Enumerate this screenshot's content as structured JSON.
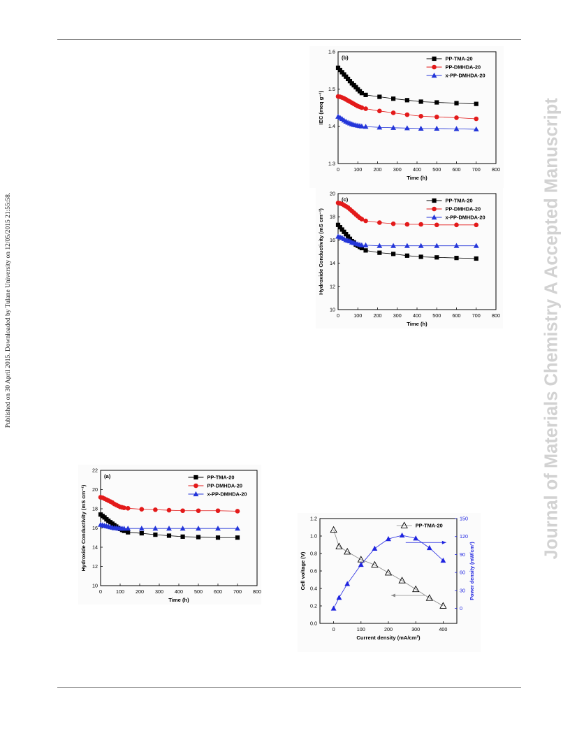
{
  "margin_left_text": "Published on 30 April 2015. Downloaded by Tulane University on 12/05/2015 21:55:58.",
  "margin_right_text": "Journal of Materials Chemistry A Accepted Manuscript",
  "chart_data": [
    {
      "id": "b",
      "type": "line",
      "panel_label": "(b)",
      "xlabel": "Time (h)",
      "ylabel": "IEC (meq g⁻¹)",
      "xlim": [
        0,
        800
      ],
      "ylim": [
        1.3,
        1.6
      ],
      "xticks": [
        "0",
        "100",
        "200",
        "300",
        "400",
        "500",
        "600",
        "700",
        "800"
      ],
      "yticks": [
        "1.3",
        "1.4",
        "1.5",
        "1.6"
      ],
      "legend_position": "top-right",
      "series": [
        {
          "name": "PP-TMA-20",
          "color": "#000000",
          "marker": "square",
          "x": [
            0,
            10,
            20,
            30,
            40,
            50,
            60,
            70,
            80,
            90,
            100,
            110,
            120,
            140,
            210,
            280,
            350,
            420,
            500,
            600,
            700
          ],
          "y": [
            1.557,
            1.551,
            1.545,
            1.539,
            1.533,
            1.527,
            1.521,
            1.515,
            1.51,
            1.505,
            1.499,
            1.494,
            1.489,
            1.484,
            1.479,
            1.474,
            1.47,
            1.466,
            1.464,
            1.462,
            1.46
          ]
        },
        {
          "name": "PP-DMHDA-20",
          "color": "#e31a1a",
          "marker": "circle",
          "x": [
            0,
            10,
            20,
            30,
            40,
            50,
            60,
            70,
            80,
            90,
            100,
            110,
            120,
            140,
            210,
            280,
            350,
            420,
            500,
            600,
            700
          ],
          "y": [
            1.48,
            1.479,
            1.477,
            1.475,
            1.472,
            1.469,
            1.466,
            1.463,
            1.46,
            1.457,
            1.454,
            1.452,
            1.45,
            1.447,
            1.441,
            1.436,
            1.431,
            1.427,
            1.425,
            1.423,
            1.42
          ]
        },
        {
          "name": "x-PP-DMHDA-20",
          "color": "#2436d9",
          "marker": "triangle",
          "x": [
            0,
            10,
            20,
            30,
            40,
            50,
            60,
            70,
            80,
            90,
            100,
            110,
            120,
            140,
            210,
            280,
            350,
            420,
            500,
            600,
            700
          ],
          "y": [
            1.426,
            1.423,
            1.42,
            1.416,
            1.413,
            1.41,
            1.408,
            1.406,
            1.404,
            1.403,
            1.402,
            1.401,
            1.4,
            1.399,
            1.397,
            1.396,
            1.395,
            1.394,
            1.394,
            1.393,
            1.392
          ]
        }
      ]
    },
    {
      "id": "c",
      "type": "line",
      "panel_label": "(c)",
      "xlabel": "Time (h)",
      "ylabel": "Hydroxide Conductivity (mS cm⁻¹)",
      "xlim": [
        0,
        800
      ],
      "ylim": [
        10,
        20
      ],
      "xticks": [
        "0",
        "100",
        "200",
        "300",
        "400",
        "500",
        "600",
        "700",
        "800"
      ],
      "yticks": [
        "10",
        "12",
        "14",
        "16",
        "18",
        "20"
      ],
      "legend_position": "top-right",
      "series": [
        {
          "name": "PP-TMA-20",
          "color": "#000000",
          "marker": "square",
          "x": [
            0,
            10,
            20,
            30,
            40,
            50,
            60,
            70,
            80,
            90,
            100,
            110,
            120,
            140,
            210,
            280,
            350,
            420,
            500,
            600,
            700
          ],
          "y": [
            17.3,
            17.1,
            16.9,
            16.7,
            16.5,
            16.3,
            16.1,
            15.9,
            15.8,
            15.6,
            15.5,
            15.4,
            15.3,
            15.1,
            14.9,
            14.8,
            14.65,
            14.55,
            14.5,
            14.45,
            14.4
          ]
        },
        {
          "name": "PP-DMHDA-20",
          "color": "#e31a1a",
          "marker": "circle",
          "x": [
            0,
            10,
            20,
            30,
            40,
            50,
            60,
            70,
            80,
            90,
            100,
            110,
            120,
            140,
            210,
            280,
            350,
            420,
            500,
            600,
            700
          ],
          "y": [
            19.2,
            19.15,
            19.1,
            19.0,
            18.9,
            18.8,
            18.65,
            18.5,
            18.35,
            18.2,
            18.05,
            17.9,
            17.8,
            17.65,
            17.5,
            17.4,
            17.35,
            17.35,
            17.3,
            17.3,
            17.3
          ]
        },
        {
          "name": "x-PP-DMHDA-20",
          "color": "#2436d9",
          "marker": "triangle",
          "x": [
            0,
            10,
            20,
            30,
            40,
            50,
            60,
            70,
            80,
            90,
            100,
            110,
            120,
            140,
            210,
            280,
            350,
            420,
            500,
            600,
            700
          ],
          "y": [
            16.3,
            16.25,
            16.2,
            16.1,
            16.0,
            15.95,
            15.9,
            15.8,
            15.75,
            15.7,
            15.65,
            15.6,
            15.55,
            15.55,
            15.5,
            15.5,
            15.5,
            15.5,
            15.5,
            15.5,
            15.5
          ]
        }
      ]
    },
    {
      "id": "a",
      "type": "line",
      "panel_label": "(a)",
      "xlabel": "Time (h)",
      "ylabel": "Hydroxide Conductivity (mS cm⁻¹)",
      "xlim": [
        0,
        800
      ],
      "ylim": [
        10,
        22
      ],
      "xticks": [
        "0",
        "100",
        "200",
        "300",
        "400",
        "500",
        "600",
        "700",
        "800"
      ],
      "yticks": [
        "10",
        "12",
        "14",
        "16",
        "18",
        "20",
        "22"
      ],
      "legend_position": "top-right",
      "series": [
        {
          "name": "PP-TMA-20",
          "color": "#000000",
          "marker": "square",
          "x": [
            0,
            10,
            20,
            30,
            40,
            50,
            60,
            70,
            80,
            90,
            100,
            110,
            120,
            140,
            210,
            280,
            350,
            420,
            500,
            600,
            700
          ],
          "y": [
            17.4,
            17.25,
            17.1,
            16.9,
            16.75,
            16.6,
            16.45,
            16.3,
            16.15,
            16.0,
            15.9,
            15.8,
            15.7,
            15.55,
            15.45,
            15.3,
            15.2,
            15.1,
            15.05,
            15.0,
            15.0
          ]
        },
        {
          "name": "PP-DMHDA-20",
          "color": "#e31a1a",
          "marker": "circle",
          "x": [
            0,
            10,
            20,
            30,
            40,
            50,
            60,
            70,
            80,
            90,
            100,
            110,
            120,
            140,
            210,
            280,
            350,
            420,
            500,
            600,
            700
          ],
          "y": [
            19.2,
            19.15,
            19.05,
            18.95,
            18.85,
            18.75,
            18.65,
            18.5,
            18.4,
            18.3,
            18.2,
            18.15,
            18.1,
            18.05,
            17.95,
            17.9,
            17.85,
            17.8,
            17.8,
            17.8,
            17.75
          ]
        },
        {
          "name": "x-PP-DMHDA-20",
          "color": "#2436d9",
          "marker": "triangle",
          "x": [
            0,
            10,
            20,
            30,
            40,
            50,
            60,
            70,
            80,
            90,
            100,
            110,
            120,
            140,
            210,
            280,
            350,
            420,
            500,
            600,
            700
          ],
          "y": [
            16.35,
            16.3,
            16.25,
            16.2,
            16.15,
            16.1,
            16.05,
            16.0,
            16.0,
            15.95,
            15.95,
            15.95,
            15.95,
            15.95,
            15.95,
            15.95,
            15.95,
            15.95,
            15.95,
            15.95,
            15.95
          ]
        }
      ]
    },
    {
      "id": "d",
      "type": "line",
      "xlabel": "Current density (mA/cm²)",
      "ylabel": "Cell voltage (V)",
      "y2label": "Power density (mW/cm²)",
      "xlim": [
        -50,
        450
      ],
      "ylim": [
        0,
        1.2
      ],
      "y2lim": [
        -25,
        150
      ],
      "xticks": [
        "0",
        "100",
        "200",
        "300",
        "400"
      ],
      "yticks": [
        "0.0",
        "0.2",
        "0.4",
        "0.6",
        "0.8",
        "1.0",
        "1.2"
      ],
      "y2ticks": [
        "0",
        "30",
        "60",
        "90",
        "120",
        "150"
      ],
      "legend_position": "top-right",
      "series": [
        {
          "name": "PP-TMA-20",
          "color": "#000000",
          "marker": "open-triangle",
          "axis": "left",
          "x": [
            0,
            20,
            50,
            100,
            150,
            200,
            250,
            300,
            350,
            400
          ],
          "y": [
            1.07,
            0.88,
            0.82,
            0.73,
            0.67,
            0.58,
            0.49,
            0.39,
            0.29,
            0.2
          ]
        },
        {
          "color": "#1f24e0",
          "marker": "filled-triangle",
          "axis": "right",
          "x": [
            0,
            20,
            50,
            100,
            150,
            200,
            250,
            300,
            350,
            400
          ],
          "y": [
            0,
            18,
            41,
            73,
            100,
            116,
            122,
            117,
            101,
            80
          ]
        }
      ]
    }
  ]
}
